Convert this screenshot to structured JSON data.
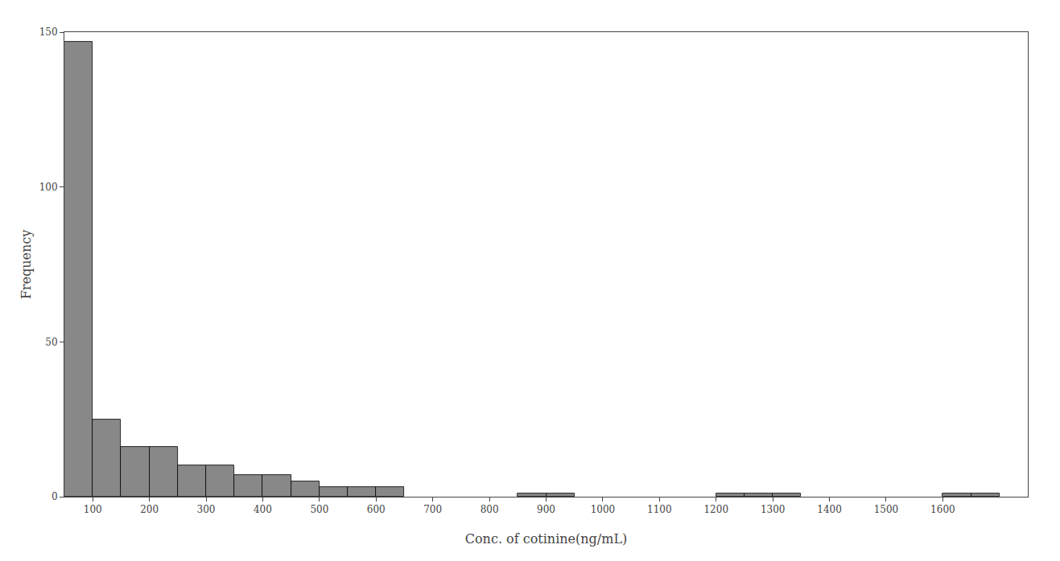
{
  "chart_data": {
    "type": "histogram",
    "xlabel": "Conc. of cotinine(ng/mL)",
    "ylabel": "Frequency",
    "bins": [
      50,
      100,
      150,
      200,
      250,
      300,
      350,
      400,
      450,
      500,
      550,
      600,
      650,
      700,
      750,
      800,
      850,
      900,
      950,
      1000,
      1050,
      1100,
      1150,
      1200,
      1250,
      1300,
      1350,
      1400,
      1450,
      1500,
      1550,
      1600,
      1650,
      1700,
      1750,
      1800
    ],
    "values": [
      147,
      25,
      16,
      16,
      10,
      10,
      7,
      7,
      5,
      3,
      3,
      3,
      0,
      0,
      0,
      0,
      1,
      1,
      0,
      0,
      0,
      0,
      0,
      1,
      1,
      1,
      0,
      0,
      0,
      0,
      0,
      1,
      1,
      0,
      0
    ],
    "color": "#888888",
    "xlim": [
      50,
      1750
    ],
    "xticks": [
      100,
      200,
      300,
      400,
      500,
      600,
      700,
      800,
      900,
      1000,
      1100,
      1200,
      1300,
      1400,
      1500,
      1600
    ],
    "ylim": [
      0,
      150
    ],
    "yticks": [
      0,
      50,
      100,
      150
    ],
    "grid": false
  }
}
